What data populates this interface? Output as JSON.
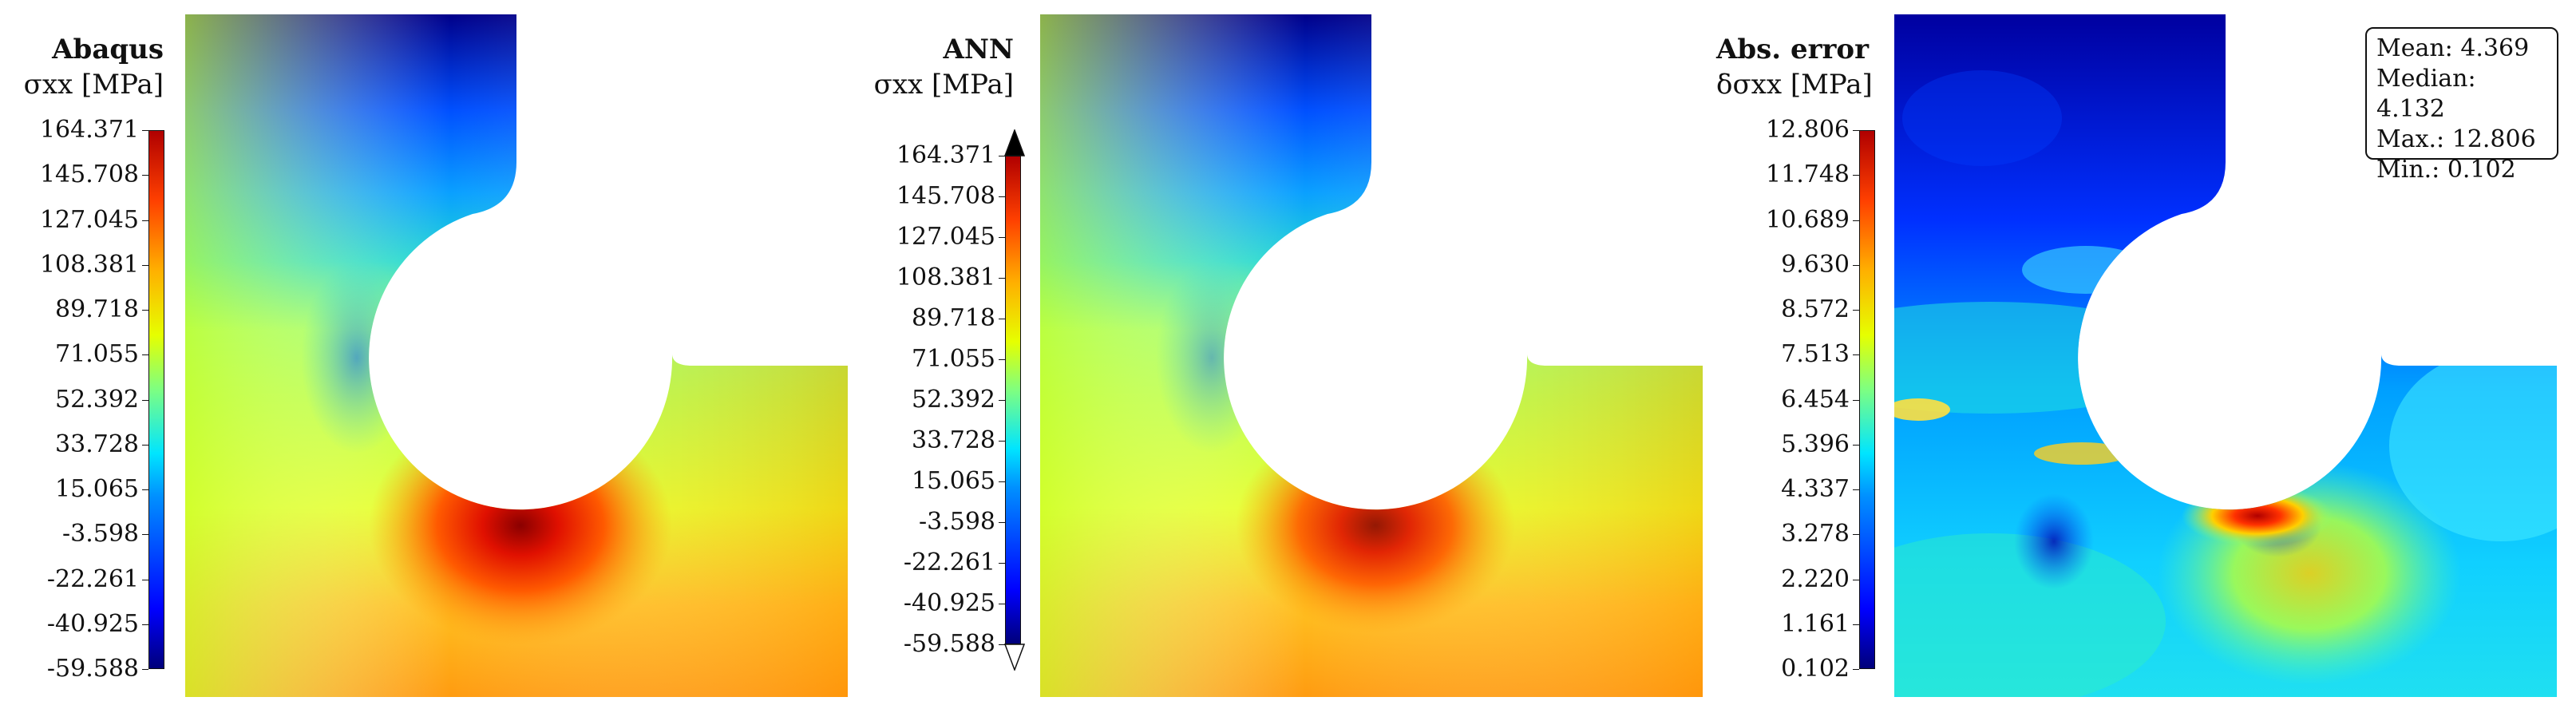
{
  "panels": [
    {
      "title": "Abaqus",
      "quantity": "σxx [MPa]",
      "colorbar_ticks": [
        "164.371",
        "145.708",
        "127.045",
        "108.381",
        "89.718",
        "71.055",
        "52.392",
        "33.728",
        "15.065",
        "-3.598",
        "-22.261",
        "-40.925",
        "-59.588"
      ],
      "extend_arrows": false
    },
    {
      "title": "ANN",
      "quantity": "σxx [MPa]",
      "colorbar_ticks": [
        "164.371",
        "145.708",
        "127.045",
        "108.381",
        "89.718",
        "71.055",
        "52.392",
        "33.728",
        "15.065",
        "-3.598",
        "-22.261",
        "-40.925",
        "-59.588"
      ],
      "extend_arrows": true
    },
    {
      "title": "Abs. error",
      "quantity": "δσxx [MPa]",
      "colorbar_ticks": [
        "12.806",
        "11.748",
        "10.689",
        "9.630",
        "8.572",
        "7.513",
        "6.454",
        "5.396",
        "4.337",
        "3.278",
        "2.220",
        "1.161",
        "0.102"
      ],
      "extend_arrows": false
    }
  ],
  "stats": {
    "mean": "Mean: 4.369",
    "median": "Median: 4.132",
    "max": "Max.: 12.806",
    "min": "Min.: 0.102"
  },
  "colors": {
    "deep_blue": "#00007a",
    "blue": "#0000ff",
    "cyan": "#00e5ff",
    "green": "#7fff80",
    "yellow": "#e6ff00",
    "orange": "#ffa500",
    "red": "#d40000"
  }
}
